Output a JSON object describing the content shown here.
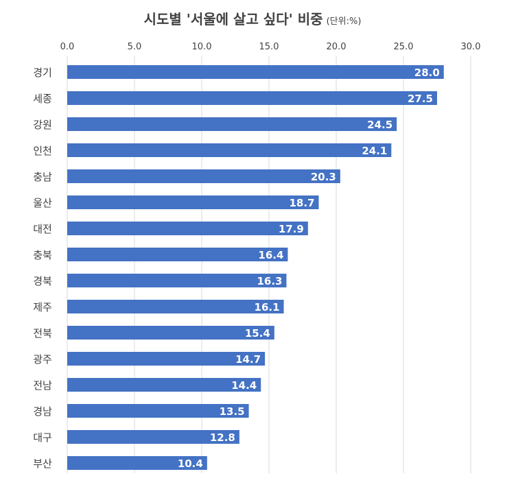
{
  "chart_data": {
    "type": "bar",
    "orientation": "horizontal",
    "title": "시도별 '서울에 살고 싶다' 비중",
    "subtitle": "(단위:%)",
    "categories": [
      "경기",
      "세종",
      "강원",
      "인천",
      "충남",
      "울산",
      "대전",
      "충북",
      "경북",
      "제주",
      "전북",
      "광주",
      "전남",
      "경남",
      "대구",
      "부산"
    ],
    "values": [
      28.0,
      27.5,
      24.5,
      24.1,
      20.3,
      18.7,
      17.9,
      16.4,
      16.3,
      16.1,
      15.4,
      14.7,
      14.4,
      13.5,
      12.8,
      10.4
    ],
    "x_ticks": [
      "0.0",
      "5.0",
      "10.0",
      "15.0",
      "20.0",
      "25.0",
      "30.0"
    ],
    "xlim": [
      0,
      30
    ],
    "xlabel": "",
    "ylabel": "",
    "grid": "vertical",
    "axis_position": "top",
    "bar_color": "#4472C4",
    "label_color": "#ffffff",
    "text_color": "#404040"
  }
}
